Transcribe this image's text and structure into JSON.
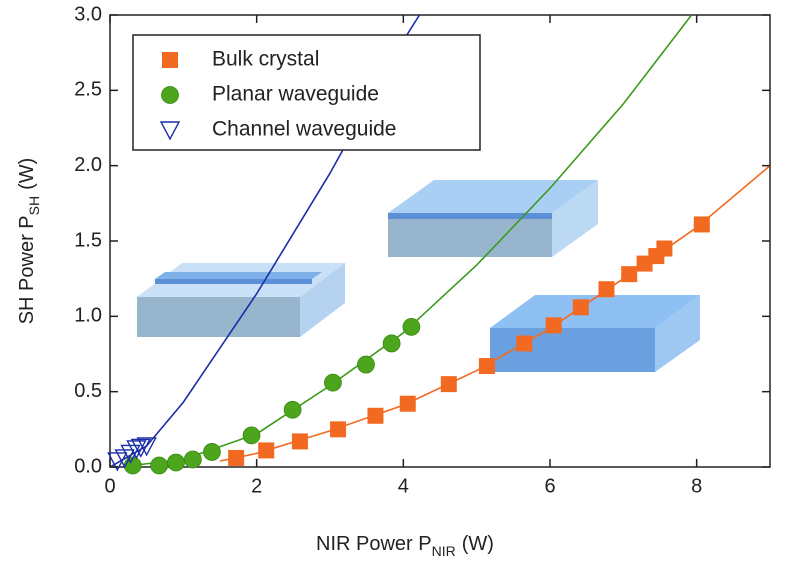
{
  "chart_data": {
    "type": "scatter",
    "xlabel": {
      "text": "NIR Power P",
      "sub": "NIR",
      "unit": "(W)"
    },
    "ylabel": {
      "text": "SH Power P",
      "sub": "SH",
      "unit": "(W)"
    },
    "xlim": [
      0,
      9
    ],
    "xticks": [
      0,
      2,
      4,
      6,
      8
    ],
    "ylim": [
      0,
      3.0
    ],
    "yticks": [
      {
        "value": 0,
        "label": "0.0"
      },
      0.5,
      {
        "value": 1,
        "label": "1.0"
      },
      1.5,
      {
        "value": 2,
        "label": "2.0"
      },
      2.5,
      {
        "value": 3,
        "label": "3.0"
      }
    ],
    "legend": "upper left",
    "series": [
      {
        "name": "Bulk crystal",
        "color": "#f26a21",
        "marker": "square",
        "x": [
          1.72,
          2.13,
          2.59,
          3.11,
          3.62,
          4.06,
          4.62,
          5.14,
          5.65,
          6.05,
          6.42,
          6.77,
          7.08,
          7.29,
          7.45,
          7.56,
          8.07
        ],
        "values": [
          0.06,
          0.11,
          0.17,
          0.25,
          0.34,
          0.42,
          0.55,
          0.67,
          0.82,
          0.94,
          1.06,
          1.18,
          1.28,
          1.35,
          1.4,
          1.45,
          1.61
        ]
      },
      {
        "name": "Planar waveguide",
        "color": "#4da51e",
        "marker": "circle",
        "x": [
          0.31,
          0.67,
          0.9,
          1.13,
          1.39,
          1.93,
          2.49,
          3.04,
          3.49,
          3.84,
          4.11
        ],
        "values": [
          0.01,
          0.01,
          0.03,
          0.05,
          0.1,
          0.21,
          0.38,
          0.56,
          0.68,
          0.82,
          0.93
        ]
      },
      {
        "name": "Channel waveguide",
        "color": "#1a2ea8",
        "marker": "triangle",
        "x": [
          0.1,
          0.2,
          0.28,
          0.36,
          0.42,
          0.5
        ],
        "values": [
          0.04,
          0.06,
          0.09,
          0.12,
          0.13,
          0.14
        ]
      }
    ],
    "fits": [
      {
        "color": "#f26a21",
        "x": [
          1.5,
          2,
          3,
          4,
          5,
          6,
          7,
          8,
          9
        ],
        "values": [
          0.04,
          0.09,
          0.24,
          0.41,
          0.64,
          0.92,
          1.25,
          1.59,
          2.0
        ]
      },
      {
        "color": "#3a9a1a",
        "x": [
          0.3,
          1,
          2,
          3,
          4,
          5,
          6,
          7,
          7.93
        ],
        "values": [
          0.01,
          0.05,
          0.22,
          0.54,
          0.89,
          1.34,
          1.85,
          2.41,
          3.0
        ]
      },
      {
        "color": "#1a2ea8",
        "x": [
          0,
          0.5,
          1,
          2,
          3,
          4,
          4.22
        ],
        "values": [
          0,
          0.14,
          0.43,
          1.15,
          1.95,
          2.83,
          3.0
        ]
      }
    ]
  }
}
